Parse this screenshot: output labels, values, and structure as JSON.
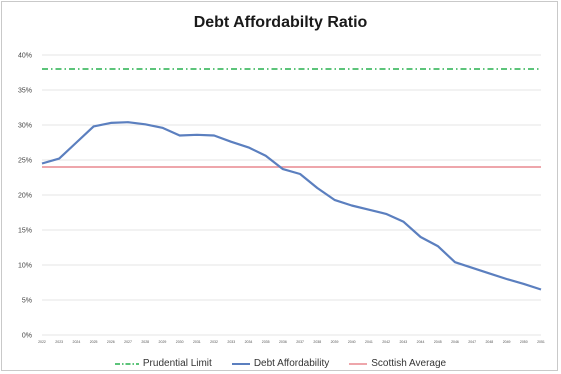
{
  "chart_data": {
    "type": "line",
    "title": "Debt Affordabilty Ratio",
    "xlabel": "",
    "ylabel": "",
    "ylim": [
      0,
      40
    ],
    "y_ticks": [
      "0%",
      "5%",
      "10%",
      "15%",
      "20%",
      "25%",
      "30%",
      "35%",
      "40%"
    ],
    "x": [
      "2022",
      "2023",
      "2024",
      "2025",
      "2026",
      "2027",
      "2028",
      "2029",
      "2030",
      "2031",
      "2032",
      "2033",
      "2034",
      "2035",
      "2036",
      "2037",
      "2038",
      "2039",
      "2040",
      "2041",
      "2042",
      "2043",
      "2044",
      "2045",
      "2046",
      "2047",
      "2048",
      "2049",
      "2050",
      "2051"
    ],
    "series": [
      {
        "name": "Prudential Limit",
        "color": "#27b04e",
        "style": "dash-dot",
        "values": [
          38,
          38,
          38,
          38,
          38,
          38,
          38,
          38,
          38,
          38,
          38,
          38,
          38,
          38,
          38,
          38,
          38,
          38,
          38,
          38,
          38,
          38,
          38,
          38,
          38,
          38,
          38,
          38,
          38,
          38
        ]
      },
      {
        "name": "Debt Affordability",
        "color": "#5b7fbf",
        "style": "solid",
        "values": [
          24.5,
          25.2,
          27.5,
          29.8,
          30.3,
          30.4,
          30.1,
          29.6,
          28.5,
          28.6,
          28.5,
          27.6,
          26.8,
          25.6,
          23.7,
          23.0,
          21.0,
          19.3,
          18.5,
          17.9,
          17.3,
          16.2,
          14.0,
          12.7,
          10.4,
          9.6,
          8.8,
          8.0,
          7.3,
          6.5
        ]
      },
      {
        "name": "Scottish Average",
        "color": "#e8898f",
        "style": "solid",
        "values": [
          24,
          24,
          24,
          24,
          24,
          24,
          24,
          24,
          24,
          24,
          24,
          24,
          24,
          24,
          24,
          24,
          24,
          24,
          24,
          24,
          24,
          24,
          24,
          24,
          24,
          24,
          24,
          24,
          24,
          24
        ]
      }
    ],
    "grid": true,
    "legend": "bottom"
  }
}
